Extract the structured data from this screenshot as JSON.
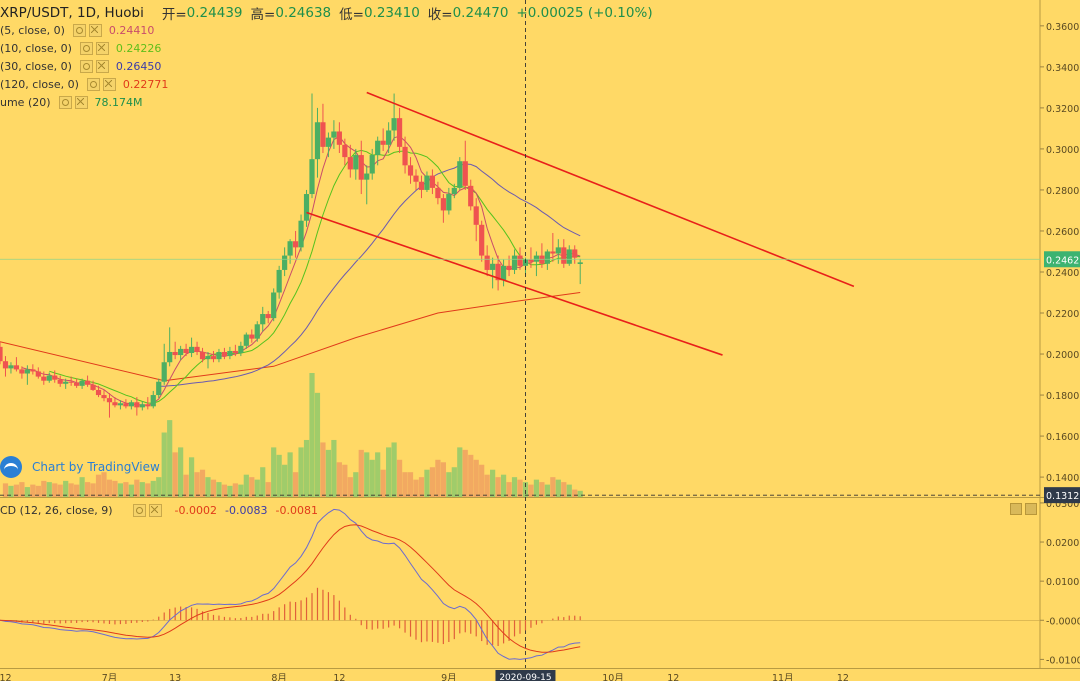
{
  "header": {
    "symbol": "XRP/USDT, 1D, Huobi",
    "open_label": "开=",
    "open": "0.24439",
    "high_label": "高=",
    "high": "0.24638",
    "low_label": "低=",
    "low": "0.23410",
    "close_label": "收=",
    "close": "0.24470",
    "change": "+0.00025 (+0.10%)"
  },
  "indicators": [
    {
      "label": "(5, close, 0)",
      "value": "0.24410",
      "color": "#c94c6a"
    },
    {
      "label": "(10, close, 0)",
      "value": "0.24226",
      "color": "#7ed321"
    },
    {
      "label": "(30, close, 0)",
      "value": "0.26450",
      "color": "#3b3ba8"
    },
    {
      "label": "(120, close, 0)",
      "value": "0.22771",
      "color": "#e03a1a"
    },
    {
      "label": "ume (20)",
      "value": "78.174M",
      "color": "#1e8f4b"
    }
  ],
  "watermark": "Chart by TradingView",
  "macd": {
    "label": "CD (12, 26, close, 9)",
    "hist": "-0.0002",
    "macd": "-0.0083",
    "signal": "-0.0081",
    "hist_color": "#e03a1a",
    "macd_color": "#3b3ba8",
    "signal_color": "#e03a1a"
  },
  "colors": {
    "up": "#4caf63",
    "down": "#ef5350",
    "vol_up": "#8fc96b",
    "vol_down": "#f0a060",
    "trendline": "#e8201a",
    "last_price_tag": "#3cb371",
    "crosshair_tag": "#2f3a4a"
  },
  "chart_data": {
    "type": "candlestick",
    "x_range": [
      "2020-06-11",
      "2020-12-18"
    ],
    "last_candle": "2020-09-25",
    "crosshair_date": "2020-09-15",
    "price_axis_ticks": [
      "0.3600",
      "0.3400",
      "0.3200",
      "0.3000",
      "0.2800",
      "0.2600",
      "0.2400",
      "0.2200",
      "0.2000",
      "0.1800",
      "0.1600",
      "0.1400"
    ],
    "ylim": [
      0.1303,
      0.3726
    ],
    "last_price_label": "0.2462",
    "crosshair_price_label": "0.1312",
    "macd_axis_ticks": [
      "0.0300",
      "0.0200",
      "0.0100",
      "-0.0000",
      "-0.0100"
    ],
    "macd_ylim": [
      -0.0122,
      0.031
    ],
    "x_tick_labels": [
      "12",
      "7月",
      "13",
      "8月",
      "12",
      "9月",
      "10月",
      "12",
      "11月",
      "12"
    ],
    "ohlc": [
      [
        0.2035,
        0.206,
        0.195,
        0.1965
      ],
      [
        0.1965,
        0.199,
        0.189,
        0.193
      ],
      [
        0.193,
        0.196,
        0.1905,
        0.1945
      ],
      [
        0.1945,
        0.1985,
        0.1915,
        0.1925
      ],
      [
        0.1925,
        0.194,
        0.188,
        0.1905
      ],
      [
        0.1905,
        0.1945,
        0.185,
        0.1925
      ],
      [
        0.1925,
        0.195,
        0.19,
        0.1915
      ],
      [
        0.1915,
        0.1935,
        0.188,
        0.189
      ],
      [
        0.189,
        0.1915,
        0.185,
        0.187
      ],
      [
        0.187,
        0.191,
        0.186,
        0.1895
      ],
      [
        0.1895,
        0.192,
        0.186,
        0.1875
      ],
      [
        0.1875,
        0.1895,
        0.184,
        0.1855
      ],
      [
        0.1855,
        0.188,
        0.183,
        0.1865
      ],
      [
        0.1865,
        0.189,
        0.1845,
        0.186
      ],
      [
        0.186,
        0.188,
        0.1835,
        0.1845
      ],
      [
        0.1845,
        0.188,
        0.183,
        0.187
      ],
      [
        0.187,
        0.1895,
        0.184,
        0.185
      ],
      [
        0.185,
        0.187,
        0.182,
        0.1825
      ],
      [
        0.1825,
        0.1845,
        0.179,
        0.18
      ],
      [
        0.18,
        0.1825,
        0.177,
        0.1785
      ],
      [
        0.1785,
        0.181,
        0.169,
        0.1765
      ],
      [
        0.1765,
        0.179,
        0.174,
        0.175
      ],
      [
        0.175,
        0.1775,
        0.173,
        0.176
      ],
      [
        0.176,
        0.178,
        0.1735,
        0.1745
      ],
      [
        0.1745,
        0.1775,
        0.173,
        0.1765
      ],
      [
        0.1765,
        0.179,
        0.17,
        0.174
      ],
      [
        0.174,
        0.177,
        0.1725,
        0.1755
      ],
      [
        0.1755,
        0.179,
        0.173,
        0.1745
      ],
      [
        0.1745,
        0.182,
        0.1735,
        0.18
      ],
      [
        0.18,
        0.188,
        0.1785,
        0.1865
      ],
      [
        0.1865,
        0.205,
        0.185,
        0.196
      ],
      [
        0.196,
        0.213,
        0.194,
        0.201
      ],
      [
        0.201,
        0.206,
        0.1975,
        0.1995
      ],
      [
        0.1995,
        0.204,
        0.197,
        0.2025
      ],
      [
        0.2025,
        0.205,
        0.199,
        0.2005
      ],
      [
        0.2005,
        0.208,
        0.1985,
        0.2035
      ],
      [
        0.2035,
        0.206,
        0.1995,
        0.201
      ],
      [
        0.201,
        0.203,
        0.196,
        0.1975
      ],
      [
        0.1975,
        0.201,
        0.193,
        0.199
      ],
      [
        0.199,
        0.2015,
        0.196,
        0.1975
      ],
      [
        0.1975,
        0.2025,
        0.196,
        0.201
      ],
      [
        0.201,
        0.203,
        0.1975,
        0.199
      ],
      [
        0.199,
        0.2035,
        0.1975,
        0.2015
      ],
      [
        0.2015,
        0.2045,
        0.199,
        0.2005
      ],
      [
        0.2005,
        0.206,
        0.199,
        0.204
      ],
      [
        0.204,
        0.2105,
        0.2025,
        0.2095
      ],
      [
        0.2095,
        0.212,
        0.2055,
        0.2075
      ],
      [
        0.2075,
        0.216,
        0.206,
        0.2145
      ],
      [
        0.2145,
        0.223,
        0.211,
        0.2195
      ],
      [
        0.2195,
        0.221,
        0.215,
        0.2175
      ],
      [
        0.2175,
        0.232,
        0.216,
        0.23
      ],
      [
        0.23,
        0.243,
        0.227,
        0.241
      ],
      [
        0.241,
        0.252,
        0.238,
        0.248
      ],
      [
        0.248,
        0.256,
        0.244,
        0.255
      ],
      [
        0.255,
        0.26,
        0.247,
        0.252
      ],
      [
        0.252,
        0.268,
        0.25,
        0.265
      ],
      [
        0.265,
        0.28,
        0.262,
        0.278
      ],
      [
        0.278,
        0.327,
        0.276,
        0.295
      ],
      [
        0.295,
        0.32,
        0.286,
        0.313
      ],
      [
        0.313,
        0.322,
        0.298,
        0.301
      ],
      [
        0.301,
        0.308,
        0.296,
        0.3055
      ],
      [
        0.3055,
        0.314,
        0.3,
        0.3085
      ],
      [
        0.3085,
        0.313,
        0.298,
        0.302
      ],
      [
        0.302,
        0.305,
        0.292,
        0.296
      ],
      [
        0.296,
        0.302,
        0.286,
        0.29
      ],
      [
        0.29,
        0.3,
        0.285,
        0.297
      ],
      [
        0.297,
        0.304,
        0.278,
        0.285
      ],
      [
        0.285,
        0.292,
        0.273,
        0.288
      ],
      [
        0.288,
        0.3,
        0.285,
        0.297
      ],
      [
        0.297,
        0.306,
        0.292,
        0.304
      ],
      [
        0.304,
        0.31,
        0.299,
        0.302
      ],
      [
        0.302,
        0.313,
        0.298,
        0.309
      ],
      [
        0.309,
        0.327,
        0.304,
        0.315
      ],
      [
        0.315,
        0.32,
        0.298,
        0.301
      ],
      [
        0.301,
        0.306,
        0.288,
        0.292
      ],
      [
        0.292,
        0.296,
        0.283,
        0.287
      ],
      [
        0.287,
        0.29,
        0.28,
        0.284
      ],
      [
        0.284,
        0.287,
        0.276,
        0.28
      ],
      [
        0.28,
        0.289,
        0.279,
        0.287
      ],
      [
        0.287,
        0.29,
        0.278,
        0.281
      ],
      [
        0.281,
        0.284,
        0.273,
        0.276
      ],
      [
        0.276,
        0.278,
        0.264,
        0.27
      ],
      [
        0.27,
        0.281,
        0.268,
        0.278
      ],
      [
        0.278,
        0.283,
        0.276,
        0.281
      ],
      [
        0.281,
        0.296,
        0.28,
        0.294
      ],
      [
        0.294,
        0.304,
        0.28,
        0.282
      ],
      [
        0.282,
        0.285,
        0.27,
        0.272
      ],
      [
        0.272,
        0.276,
        0.255,
        0.263
      ],
      [
        0.263,
        0.265,
        0.245,
        0.248
      ],
      [
        0.248,
        0.253,
        0.238,
        0.241
      ],
      [
        0.241,
        0.247,
        0.232,
        0.244
      ],
      [
        0.244,
        0.248,
        0.231,
        0.236
      ],
      [
        0.236,
        0.246,
        0.233,
        0.243
      ],
      [
        0.243,
        0.248,
        0.238,
        0.241
      ],
      [
        0.241,
        0.251,
        0.239,
        0.248
      ],
      [
        0.248,
        0.252,
        0.241,
        0.243
      ],
      [
        0.243,
        0.247,
        0.239,
        0.246
      ],
      [
        0.246,
        0.252,
        0.242,
        0.245
      ],
      [
        0.245,
        0.25,
        0.238,
        0.248
      ],
      [
        0.248,
        0.254,
        0.242,
        0.244
      ],
      [
        0.244,
        0.251,
        0.241,
        0.25
      ],
      [
        0.25,
        0.259,
        0.245,
        0.249
      ],
      [
        0.249,
        0.256,
        0.244,
        0.252
      ],
      [
        0.252,
        0.256,
        0.242,
        0.244
      ],
      [
        0.244,
        0.253,
        0.243,
        0.251
      ],
      [
        0.251,
        0.253,
        0.244,
        0.247
      ],
      [
        0.2439,
        0.2464,
        0.2341,
        0.2447
      ]
    ],
    "volume": [
      0.0,
      0.11,
      0.09,
      0.1,
      0.12,
      0.08,
      0.1,
      0.09,
      0.13,
      0.12,
      0.11,
      0.1,
      0.13,
      0.11,
      0.1,
      0.16,
      0.12,
      0.11,
      0.18,
      0.2,
      0.14,
      0.13,
      0.11,
      0.12,
      0.1,
      0.14,
      0.12,
      0.11,
      0.13,
      0.16,
      0.52,
      0.62,
      0.36,
      0.4,
      0.18,
      0.32,
      0.2,
      0.22,
      0.16,
      0.14,
      0.12,
      0.1,
      0.09,
      0.11,
      0.1,
      0.18,
      0.16,
      0.14,
      0.24,
      0.12,
      0.4,
      0.34,
      0.26,
      0.36,
      0.2,
      0.4,
      0.46,
      1.0,
      0.84,
      0.44,
      0.38,
      0.46,
      0.28,
      0.26,
      0.16,
      0.2,
      0.38,
      0.36,
      0.3,
      0.36,
      0.22,
      0.4,
      0.44,
      0.3,
      0.2,
      0.2,
      0.14,
      0.16,
      0.22,
      0.24,
      0.3,
      0.28,
      0.2,
      0.24,
      0.4,
      0.38,
      0.34,
      0.3,
      0.26,
      0.18,
      0.22,
      0.16,
      0.18,
      0.12,
      0.16,
      0.14,
      0.12,
      0.1,
      0.14,
      0.12,
      0.1,
      0.16,
      0.14,
      0.12,
      0.1,
      0.06,
      0.05
    ],
    "ma5": [],
    "ma10": [],
    "ma30": [],
    "ma120": [
      [
        0,
        0.206
      ],
      [
        30,
        0.187
      ],
      [
        50,
        0.194
      ],
      [
        65,
        0.208
      ],
      [
        80,
        0.22
      ],
      [
        95,
        0.226
      ],
      [
        106,
        0.23
      ]
    ],
    "macd_line": [],
    "signal_line": [],
    "trend_channel": [
      {
        "from": [
          "2020-08-17",
          0.3275
        ],
        "to": [
          "2020-11-14",
          0.233
        ]
      },
      {
        "from": [
          "2020-08-06",
          0.269
        ],
        "to": [
          "2020-10-21",
          0.1995
        ]
      }
    ]
  }
}
